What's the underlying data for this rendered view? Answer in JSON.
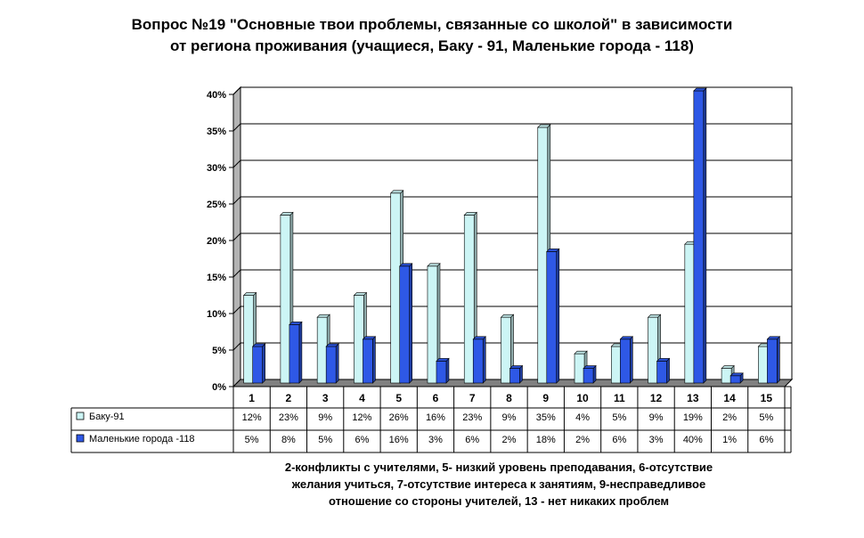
{
  "title_line1": "Вопрос №19 \"Основные твои проблемы, связанные со школой\" в зависимости",
  "title_line2": "от региона проживания (учащиеся, Баку - 91, Маленькие города - 118)",
  "chart_data": {
    "type": "bar",
    "categories": [
      "1",
      "2",
      "3",
      "4",
      "5",
      "6",
      "7",
      "8",
      "9",
      "10",
      "11",
      "12",
      "13",
      "14",
      "15"
    ],
    "series": [
      {
        "name": "Баку-91",
        "values": [
          12,
          23,
          9,
          12,
          26,
          16,
          23,
          9,
          35,
          4,
          5,
          9,
          19,
          2,
          5
        ],
        "table_labels": [
          "12%",
          "23%",
          "9%",
          "12%",
          "26%",
          "16%",
          "23%",
          "9%",
          "35%",
          "4%",
          "5%",
          "9%",
          "19%",
          "2%",
          "5%"
        ],
        "color": "#ccf5f5"
      },
      {
        "name": "Маленькие города -118",
        "values": [
          5,
          8,
          5,
          6,
          16,
          3,
          6,
          2,
          18,
          2,
          6,
          3,
          40,
          1,
          6
        ],
        "table_labels": [
          "5%",
          "8%",
          "5%",
          "6%",
          "16%",
          "3%",
          "6%",
          "2%",
          "18%",
          "2%",
          "6%",
          "3%",
          "40%",
          "1%",
          "6%"
        ],
        "color": "#2e58e6"
      }
    ],
    "y_ticks": [
      "0%",
      "5%",
      "10%",
      "15%",
      "20%",
      "25%",
      "30%",
      "35%",
      "40%"
    ],
    "ylim": [
      0,
      40
    ],
    "grid": true,
    "legend": "data-table"
  },
  "note_line1": "2-конфликты с учителями, 5- низкий уровень преподавания, 6-отсутствие",
  "note_line2": "желания учиться,  7-отсутствие интереса к занятиям, 9-несправедливое",
  "note_line3": "отношение со стороны учителей, 13 - нет никаких проблем"
}
